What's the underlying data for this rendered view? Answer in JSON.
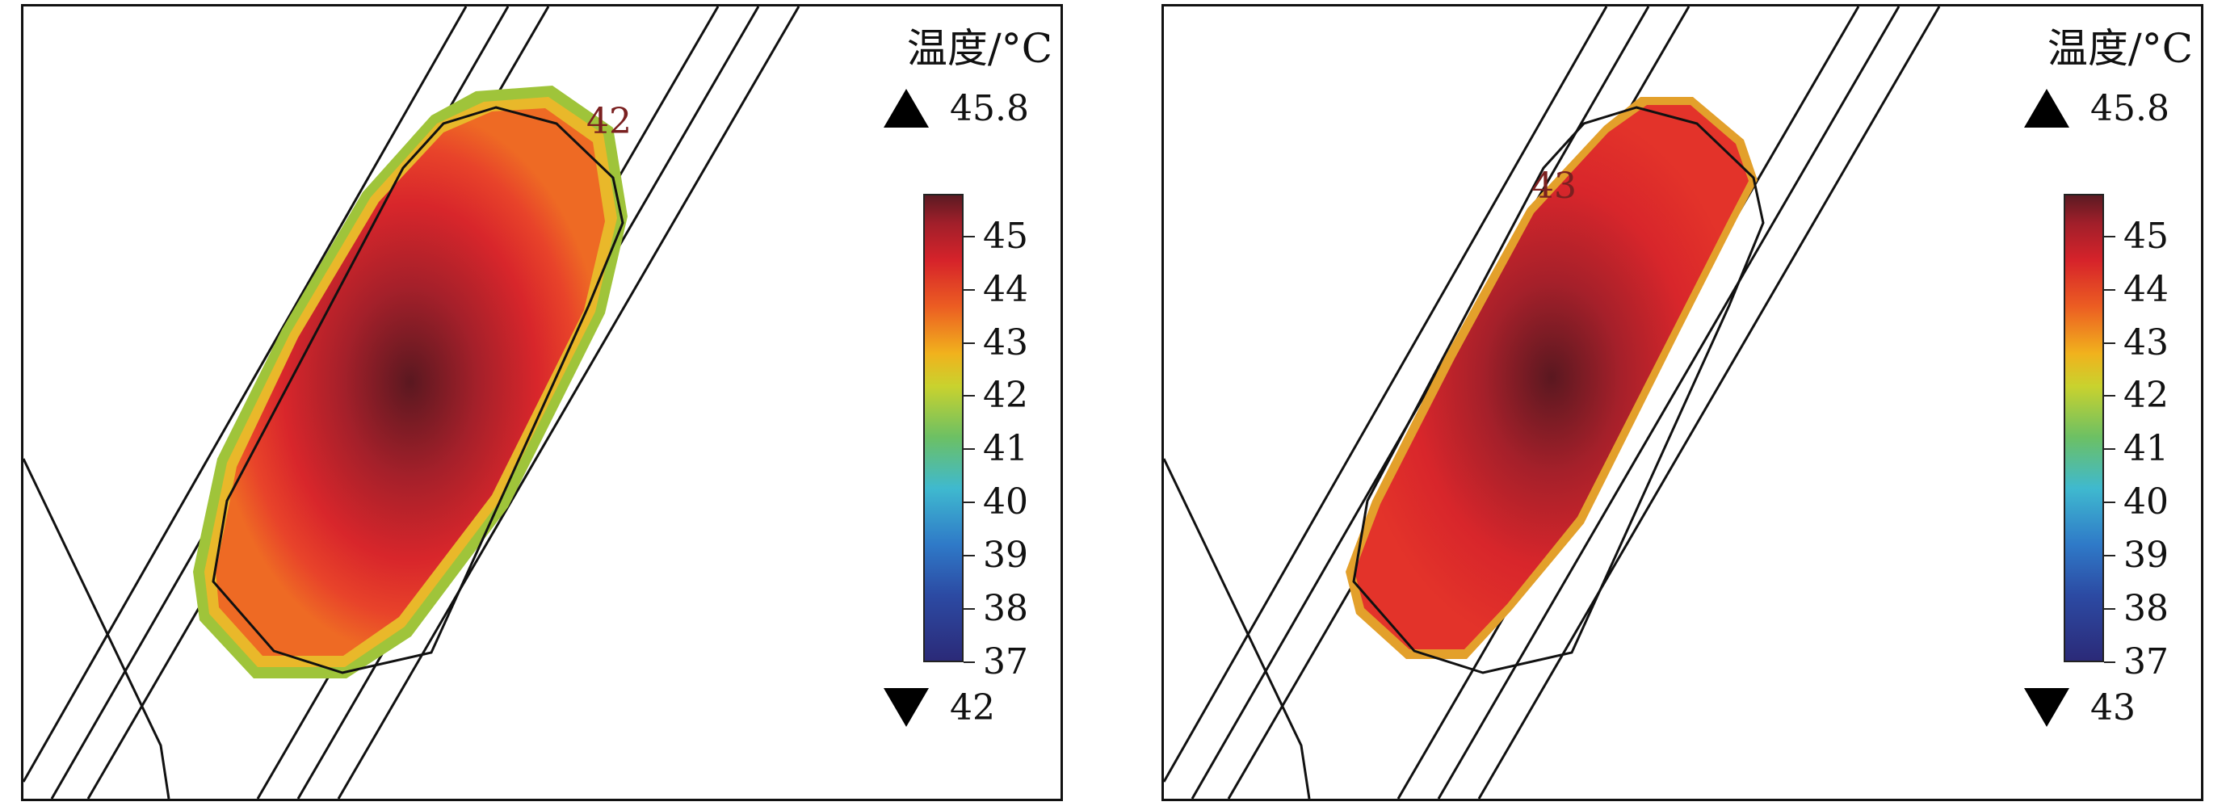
{
  "chart_data": [
    {
      "type": "heatmap",
      "legend_title": "温度/°C",
      "colorbar": {
        "min": 37,
        "max": 45.8,
        "ticks": [
          "45",
          "44",
          "43",
          "42",
          "41",
          "40",
          "39",
          "38",
          "37"
        ]
      },
      "max_label": "45.8",
      "min_label": "42",
      "contour_label": "42",
      "colormap": [
        "#2b2a78",
        "#2f7ac8",
        "#3fb9cf",
        "#6cc064",
        "#c9d22e",
        "#f1b21d",
        "#ec5e22",
        "#d6232a",
        "#5c1a22"
      ]
    },
    {
      "type": "heatmap",
      "legend_title": "温度/°C",
      "colorbar": {
        "min": 37,
        "max": 45.8,
        "ticks": [
          "45",
          "44",
          "43",
          "42",
          "41",
          "40",
          "39",
          "38",
          "37"
        ]
      },
      "max_label": "45.8",
      "min_label": "43",
      "contour_label": "43",
      "colormap": [
        "#2b2a78",
        "#2f7ac8",
        "#3fb9cf",
        "#6cc064",
        "#c9d22e",
        "#f1b21d",
        "#ec5e22",
        "#d6232a",
        "#5c1a22"
      ]
    }
  ]
}
